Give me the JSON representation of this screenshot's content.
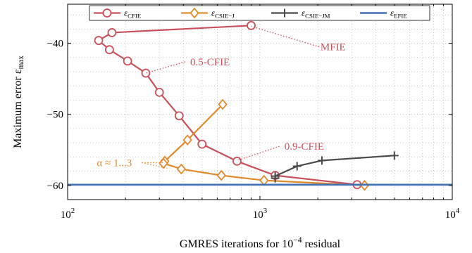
{
  "chart_data": {
    "type": "line",
    "xlabel": "GMRES iterations for 10^-4 residual",
    "ylabel": "Maximum error ε_max",
    "xscale": "log",
    "xlim": [
      100,
      10000
    ],
    "ylim": [
      -62,
      -34.5
    ],
    "x_ticks": [
      100,
      1000,
      10000
    ],
    "x_tick_labels": [
      "10^2",
      "10^3",
      "10^4"
    ],
    "y_ticks": [
      -60,
      -50,
      -40
    ],
    "y_tick_labels": [
      "−60",
      "−50",
      "−40"
    ],
    "grid": "dotted, major and minor",
    "legend": {
      "placement": "top"
    },
    "series": [
      {
        "name": "ε_CFIE",
        "color": "#c8505a",
        "marker": "circle",
        "points": [
          {
            "x": 900,
            "y": -37.5
          },
          {
            "x": 170,
            "y": -38.5
          },
          {
            "x": 145,
            "y": -39.6
          },
          {
            "x": 165,
            "y": -40.9
          },
          {
            "x": 205,
            "y": -42.5
          },
          {
            "x": 255,
            "y": -44.2
          },
          {
            "x": 300,
            "y": -46.9
          },
          {
            "x": 380,
            "y": -50.2
          },
          {
            "x": 500,
            "y": -54.2
          },
          {
            "x": 760,
            "y": -56.6
          },
          {
            "x": 1200,
            "y": -58.6
          },
          {
            "x": 3200,
            "y": -59.9
          }
        ]
      },
      {
        "name": "ε_CSIE−J",
        "color": "#e08a2e",
        "marker": "diamond",
        "points": [
          {
            "x": 640,
            "y": -48.6
          },
          {
            "x": 420,
            "y": -53.6
          },
          {
            "x": 320,
            "y": -56.6
          },
          {
            "x": 315,
            "y": -56.9
          },
          {
            "x": 390,
            "y": -57.7
          },
          {
            "x": 630,
            "y": -58.6
          },
          {
            "x": 1050,
            "y": -59.3
          },
          {
            "x": 3500,
            "y": -60.0
          }
        ]
      },
      {
        "name": "ε_CSIE−JM",
        "color": "#4a4a4a",
        "marker": "plus",
        "points": [
          {
            "x": 1200,
            "y": -59.0
          },
          {
            "x": 1200,
            "y": -58.7
          },
          {
            "x": 1560,
            "y": -57.3
          },
          {
            "x": 2100,
            "y": -56.5
          },
          {
            "x": 5000,
            "y": -55.8
          }
        ]
      },
      {
        "name": "ε_EFIE",
        "color": "#3d6fb5",
        "marker": "none",
        "points": [
          {
            "x": 100,
            "y": -59.9
          },
          {
            "x": 10000,
            "y": -59.9
          }
        ]
      }
    ],
    "annotations": [
      {
        "text": "MFIE",
        "color": "#c8505a",
        "x": 2400,
        "y": -40.5,
        "pointer": {
          "x": 900,
          "y": -37.6
        }
      },
      {
        "text": "0.5-CFIE",
        "color": "#c8505a",
        "x": 550,
        "y": -42.6,
        "pointer": {
          "x": 255,
          "y": -44.2
        }
      },
      {
        "text": "0.9-CFIE",
        "color": "#c8505a",
        "x": 1700,
        "y": -54.5,
        "pointer": {
          "x": 760,
          "y": -56.5
        }
      },
      {
        "text": "α ≈ 1...3",
        "color": "#e08a2e",
        "x": 175,
        "y": -56.8,
        "pointers": [
          {
            "x": 315,
            "y": -56.8
          },
          {
            "x": 330,
            "y": -57.6
          }
        ]
      }
    ]
  }
}
